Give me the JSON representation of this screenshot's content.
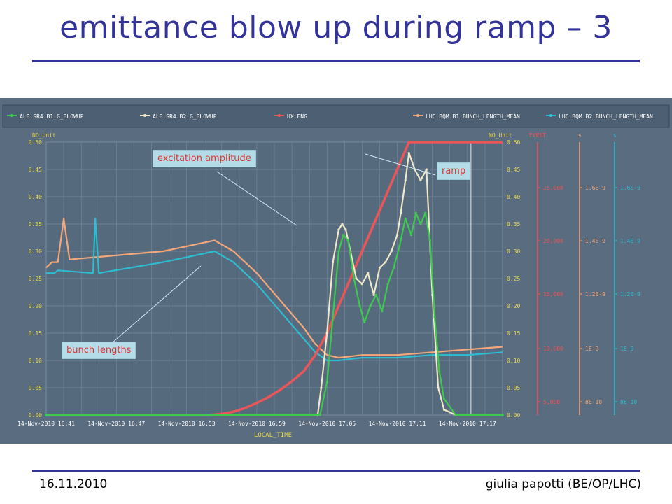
{
  "slide": {
    "title": "emittance blow up during ramp – 3",
    "footer_date": "16.11.2010",
    "footer_author": "giulia papotti (BE/OP/LHC)"
  },
  "callouts": {
    "excitation": "excitation amplitude",
    "ramp": "ramp",
    "bunch": "bunch lengths"
  },
  "chart_data": {
    "type": "line",
    "xlabel": "LOCAL_TIME",
    "x_ticks": [
      "14-Nov-2010 16:41",
      "14-Nov-2010 16:47",
      "14-Nov-2010 16:53",
      "14-Nov-2010 16:59",
      "14-Nov-2010 17:05",
      "14-Nov-2010 17:11",
      "14-Nov-2010 17:17"
    ],
    "x_range_minutes": [
      0,
      39
    ],
    "legend": [
      {
        "name": "ALB.SR4.B1:G_BLOWUP",
        "color": "#3ec94d"
      },
      {
        "name": "ALB.SR4.B2:G_BLOWUP",
        "color": "#f0e8c8"
      },
      {
        "name": "HX:ENG",
        "color": "#e8565a"
      },
      {
        "name": "LHC.BQM.B1:BUNCH_LENGTH_MEAN",
        "color": "#f3a77a"
      },
      {
        "name": "LHC.BQM.B2:BUNCH_LENGTH_MEAN",
        "color": "#2dbcd0"
      }
    ],
    "axes": {
      "left": {
        "label": "NO_Unit",
        "ticks": [
          "0.50",
          "0.45",
          "0.40",
          "0.35",
          "0.30",
          "0.25",
          "0.20",
          "0.15",
          "0.10",
          "0.05",
          "0.00"
        ],
        "color": "#e7d84a"
      },
      "right1": {
        "label": "NO_Unit",
        "ticks": [
          "0.50",
          "0.45",
          "0.40",
          "0.35",
          "0.30",
          "0.25",
          "0.20",
          "0.15",
          "0.10",
          "0.05",
          "0.00"
        ],
        "color": "#e7d84a"
      },
      "event": {
        "label": "EVENT",
        "ticks": [
          "25,000",
          "20,000",
          "15,000",
          "10,000",
          "5,000"
        ],
        "color": "#e8565a"
      },
      "s1": {
        "label": "s",
        "ticks": [
          "1.6E-9",
          "1.4E-9",
          "1.2E-9",
          "1E-9",
          "8E-10"
        ],
        "color": "#f3a77a"
      },
      "s2": {
        "label": "s",
        "ticks": [
          "1.6E-9",
          "1.4E-9",
          "1.2E-9",
          "1E-9",
          "8E-10"
        ],
        "color": "#2dbcd0"
      }
    },
    "series": [
      {
        "name": "LHC.BQM.B1:BUNCH_LENGTH_MEAN",
        "axis": "left",
        "color": "#f3a77a",
        "x": [
          0,
          0.5,
          1,
          1.5,
          2,
          10,
          14.4,
          16,
          18,
          20,
          22,
          23,
          24,
          25,
          27,
          30,
          33,
          36,
          39
        ],
        "y": [
          0.27,
          0.28,
          0.28,
          0.36,
          0.285,
          0.3,
          0.32,
          0.3,
          0.26,
          0.21,
          0.16,
          0.13,
          0.11,
          0.105,
          0.11,
          0.11,
          0.115,
          0.12,
          0.125
        ]
      },
      {
        "name": "LHC.BQM.B2:BUNCH_LENGTH_MEAN",
        "axis": "left",
        "color": "#2dbcd0",
        "x": [
          0,
          0.7,
          1,
          4,
          4.2,
          4.5,
          10,
          14.4,
          16,
          18,
          20,
          22,
          23,
          24,
          25,
          27,
          30,
          33,
          36,
          39
        ],
        "y": [
          0.26,
          0.26,
          0.265,
          0.26,
          0.36,
          0.26,
          0.28,
          0.3,
          0.28,
          0.24,
          0.19,
          0.14,
          0.115,
          0.1,
          0.1,
          0.105,
          0.105,
          0.11,
          0.11,
          0.115
        ]
      },
      {
        "name": "HX:ENG",
        "axis": "left",
        "color": "#e8565a",
        "x": [
          0,
          14,
          15,
          16,
          17,
          18,
          19,
          20,
          21,
          22,
          23,
          24,
          25,
          26,
          27,
          28,
          29,
          30,
          31,
          32,
          39
        ],
        "y": [
          0.0,
          0.0,
          0.002,
          0.006,
          0.013,
          0.022,
          0.033,
          0.046,
          0.062,
          0.08,
          0.11,
          0.15,
          0.2,
          0.25,
          0.3,
          0.35,
          0.4,
          0.45,
          0.5,
          0.5,
          0.5
        ]
      },
      {
        "name": "ALB.SR4.B2:G_BLOWUP",
        "axis": "left",
        "color": "#f0e8c8",
        "x": [
          0,
          23.2,
          23.5,
          24,
          24.5,
          25,
          25.3,
          25.6,
          26,
          26.5,
          27,
          27.5,
          28,
          28.5,
          29,
          29.5,
          30,
          30.3,
          30.7,
          31,
          31.5,
          32,
          32.5,
          33,
          33.5,
          34,
          35,
          39
        ],
        "y": [
          0,
          0,
          0.05,
          0.15,
          0.28,
          0.34,
          0.35,
          0.34,
          0.3,
          0.25,
          0.24,
          0.26,
          0.22,
          0.27,
          0.28,
          0.3,
          0.33,
          0.37,
          0.43,
          0.48,
          0.45,
          0.43,
          0.45,
          0.22,
          0.05,
          0.01,
          0,
          0
        ]
      },
      {
        "name": "ALB.SR4.B1:G_BLOWUP",
        "axis": "left",
        "color": "#3ec94d",
        "x": [
          0,
          23.4,
          24,
          24.5,
          25,
          25.4,
          25.8,
          26.3,
          26.8,
          27.2,
          27.7,
          28.2,
          28.7,
          29.2,
          29.7,
          30.2,
          30.7,
          31.2,
          31.6,
          32,
          32.4,
          32.8,
          33.2,
          33.6,
          34,
          35,
          39
        ],
        "y": [
          0,
          0,
          0.06,
          0.18,
          0.3,
          0.33,
          0.32,
          0.25,
          0.2,
          0.17,
          0.2,
          0.22,
          0.19,
          0.24,
          0.27,
          0.31,
          0.36,
          0.33,
          0.37,
          0.35,
          0.37,
          0.32,
          0.18,
          0.08,
          0.03,
          0,
          0
        ]
      }
    ]
  }
}
